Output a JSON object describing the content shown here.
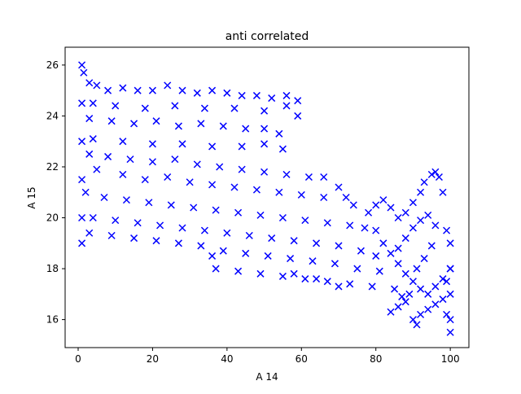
{
  "chart_data": {
    "type": "scatter",
    "title": "anti correlated",
    "xlabel": "A 14",
    "ylabel": "A 15",
    "xlim": [
      -3.5,
      105
    ],
    "ylim": [
      14.9,
      26.7
    ],
    "xticks": [
      0,
      20,
      40,
      60,
      80,
      100
    ],
    "yticks": [
      16,
      18,
      20,
      22,
      24,
      26
    ],
    "grid": false,
    "legend": "none",
    "marker": "x",
    "color": "#0000ff",
    "series": [
      {
        "points": [
          [
            1,
            26.0
          ],
          [
            1.5,
            25.7
          ],
          [
            1,
            24.5
          ],
          [
            1,
            23.0
          ],
          [
            1,
            21.5
          ],
          [
            1,
            20.0
          ],
          [
            1,
            19.0
          ],
          [
            3,
            25.3
          ],
          [
            5,
            25.2
          ],
          [
            8,
            25.0
          ],
          [
            12,
            25.1
          ],
          [
            16,
            25.0
          ],
          [
            20,
            25.0
          ],
          [
            24,
            25.2
          ],
          [
            28,
            25.0
          ],
          [
            32,
            24.9
          ],
          [
            36,
            25.0
          ],
          [
            40,
            24.9
          ],
          [
            44,
            24.8
          ],
          [
            48,
            24.8
          ],
          [
            52,
            24.7
          ],
          [
            56,
            24.8
          ],
          [
            59,
            24.6
          ],
          [
            4,
            24.5
          ],
          [
            10,
            24.4
          ],
          [
            18,
            24.3
          ],
          [
            26,
            24.4
          ],
          [
            34,
            24.3
          ],
          [
            42,
            24.3
          ],
          [
            50,
            24.2
          ],
          [
            56,
            24.4
          ],
          [
            59,
            24.0
          ],
          [
            3,
            23.9
          ],
          [
            9,
            23.8
          ],
          [
            15,
            23.7
          ],
          [
            21,
            23.8
          ],
          [
            27,
            23.6
          ],
          [
            33,
            23.7
          ],
          [
            39,
            23.6
          ],
          [
            45,
            23.5
          ],
          [
            50,
            23.5
          ],
          [
            54,
            23.3
          ],
          [
            4,
            23.1
          ],
          [
            12,
            23.0
          ],
          [
            20,
            22.9
          ],
          [
            28,
            22.9
          ],
          [
            36,
            22.8
          ],
          [
            44,
            22.8
          ],
          [
            50,
            22.9
          ],
          [
            55,
            22.7
          ],
          [
            3,
            22.5
          ],
          [
            8,
            22.4
          ],
          [
            14,
            22.3
          ],
          [
            20,
            22.2
          ],
          [
            26,
            22.3
          ],
          [
            32,
            22.1
          ],
          [
            38,
            22.0
          ],
          [
            44,
            21.9
          ],
          [
            50,
            21.8
          ],
          [
            56,
            21.7
          ],
          [
            62,
            21.6
          ],
          [
            66,
            21.6
          ],
          [
            5,
            21.9
          ],
          [
            12,
            21.7
          ],
          [
            18,
            21.5
          ],
          [
            24,
            21.6
          ],
          [
            30,
            21.4
          ],
          [
            36,
            21.3
          ],
          [
            42,
            21.2
          ],
          [
            48,
            21.1
          ],
          [
            54,
            21.0
          ],
          [
            60,
            20.9
          ],
          [
            66,
            20.8
          ],
          [
            70,
            21.2
          ],
          [
            72,
            20.8
          ],
          [
            74,
            20.5
          ],
          [
            2,
            21.0
          ],
          [
            7,
            20.8
          ],
          [
            13,
            20.7
          ],
          [
            19,
            20.6
          ],
          [
            25,
            20.5
          ],
          [
            31,
            20.4
          ],
          [
            37,
            20.3
          ],
          [
            43,
            20.2
          ],
          [
            49,
            20.1
          ],
          [
            55,
            20.0
          ],
          [
            61,
            19.9
          ],
          [
            67,
            19.8
          ],
          [
            73,
            19.7
          ],
          [
            77,
            19.6
          ],
          [
            4,
            20.0
          ],
          [
            10,
            19.9
          ],
          [
            16,
            19.8
          ],
          [
            22,
            19.7
          ],
          [
            28,
            19.6
          ],
          [
            34,
            19.5
          ],
          [
            40,
            19.4
          ],
          [
            46,
            19.3
          ],
          [
            52,
            19.2
          ],
          [
            58,
            19.1
          ],
          [
            64,
            19.0
          ],
          [
            70,
            18.9
          ],
          [
            76,
            18.7
          ],
          [
            80,
            18.5
          ],
          [
            3,
            19.4
          ],
          [
            9,
            19.3
          ],
          [
            15,
            19.2
          ],
          [
            21,
            19.1
          ],
          [
            27,
            19.0
          ],
          [
            33,
            18.9
          ],
          [
            36,
            18.5
          ],
          [
            39,
            18.7
          ],
          [
            45,
            18.6
          ],
          [
            51,
            18.5
          ],
          [
            57,
            18.4
          ],
          [
            63,
            18.3
          ],
          [
            69,
            18.2
          ],
          [
            75,
            18.0
          ],
          [
            81,
            17.9
          ],
          [
            37,
            18.0
          ],
          [
            43,
            17.9
          ],
          [
            49,
            17.8
          ],
          [
            55,
            17.7
          ],
          [
            61,
            17.6
          ],
          [
            67,
            17.5
          ],
          [
            73,
            17.4
          ],
          [
            79,
            17.3
          ],
          [
            85,
            17.2
          ],
          [
            58,
            17.8
          ],
          [
            64,
            17.6
          ],
          [
            70,
            17.3
          ],
          [
            78,
            20.2
          ],
          [
            80,
            20.5
          ],
          [
            82,
            20.7
          ],
          [
            84,
            20.4
          ],
          [
            86,
            20.0
          ],
          [
            88,
            20.2
          ],
          [
            90,
            20.6
          ],
          [
            92,
            21.0
          ],
          [
            93,
            21.4
          ],
          [
            95,
            21.7
          ],
          [
            96,
            21.8
          ],
          [
            97,
            21.6
          ],
          [
            98,
            21.0
          ],
          [
            80,
            19.5
          ],
          [
            82,
            19.0
          ],
          [
            84,
            18.6
          ],
          [
            86,
            18.2
          ],
          [
            88,
            17.8
          ],
          [
            90,
            17.5
          ],
          [
            92,
            17.2
          ],
          [
            94,
            17.0
          ],
          [
            96,
            17.3
          ],
          [
            98,
            17.6
          ],
          [
            100,
            18.0
          ],
          [
            84,
            16.3
          ],
          [
            86,
            16.5
          ],
          [
            88,
            16.7
          ],
          [
            90,
            16.0
          ],
          [
            91,
            15.8
          ],
          [
            92,
            16.2
          ],
          [
            94,
            16.4
          ],
          [
            96,
            16.6
          ],
          [
            98,
            16.8
          ],
          [
            99,
            19.5
          ],
          [
            100,
            19.0
          ],
          [
            100,
            18.0
          ],
          [
            100,
            17.0
          ],
          [
            100,
            16.0
          ],
          [
            100,
            15.5
          ],
          [
            99,
            17.5
          ],
          [
            99,
            16.2
          ],
          [
            86,
            18.8
          ],
          [
            88,
            19.2
          ],
          [
            90,
            19.6
          ],
          [
            92,
            19.9
          ],
          [
            94,
            20.1
          ],
          [
            96,
            19.7
          ],
          [
            95,
            18.9
          ],
          [
            93,
            18.4
          ],
          [
            91,
            18.0
          ],
          [
            89,
            17.0
          ],
          [
            87,
            16.9
          ]
        ]
      }
    ]
  }
}
